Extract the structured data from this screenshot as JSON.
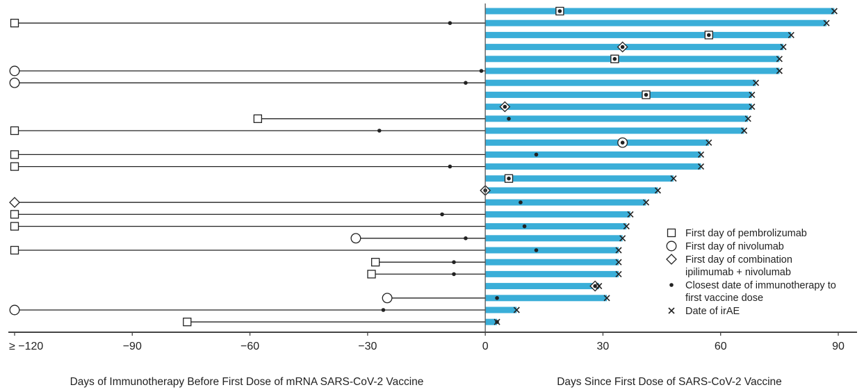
{
  "chart_data": {
    "type": "timeline",
    "x_axis": {
      "range": [
        -120,
        90
      ],
      "ticks": [
        {
          "value": -120,
          "label": "≥ −120"
        },
        {
          "value": -90,
          "label": "−90"
        },
        {
          "value": -60,
          "label": "−60"
        },
        {
          "value": -30,
          "label": "−30"
        },
        {
          "value": 0,
          "label": "0"
        },
        {
          "value": 30,
          "label": "30"
        },
        {
          "value": 60,
          "label": "60"
        },
        {
          "value": 90,
          "label": "90"
        }
      ],
      "left_title": "Days of Immunotherapy Before First Dose of mRNA SARS-CoV-2 Vaccine",
      "right_title": "Days Since First Dose of SARS-CoV-2 Vaccine"
    },
    "colors": {
      "bar": "#3aaed8",
      "line": "#222222"
    },
    "legend": {
      "placement": "bottom-right",
      "entries": [
        {
          "marker": "square",
          "lines": [
            "First day of pembrolizumab"
          ]
        },
        {
          "marker": "circle",
          "lines": [
            "First day of nivolumab"
          ]
        },
        {
          "marker": "diamond",
          "lines": [
            "First day of combination",
            "ipilimumab + nivolumab"
          ]
        },
        {
          "marker": "dot",
          "lines": [
            "Closest date of immunotherapy to",
            "first vaccine dose"
          ]
        },
        {
          "marker": "cross",
          "lines": [
            "Date of irAE"
          ]
        }
      ]
    },
    "patients": [
      {
        "start": 19,
        "start_type": "square",
        "closest": 19,
        "irae": 89
      },
      {
        "start": -120,
        "start_type": "square",
        "closest": -9,
        "irae": 87
      },
      {
        "start": 57,
        "start_type": "square",
        "closest": 57,
        "irae": 78
      },
      {
        "start": 35,
        "start_type": "diamond",
        "closest": 35,
        "irae": 76
      },
      {
        "start": 33,
        "start_type": "square",
        "closest": 33,
        "irae": 75
      },
      {
        "start": -120,
        "start_type": "circle",
        "closest": -1,
        "irae": 75
      },
      {
        "start": -120,
        "start_type": "circle",
        "closest": -5,
        "irae": 69
      },
      {
        "start": 41,
        "start_type": "square",
        "closest": 41,
        "irae": 68
      },
      {
        "start": 5,
        "start_type": "diamond",
        "closest": 5,
        "irae": 68
      },
      {
        "start": -58,
        "start_type": "square",
        "closest": 6,
        "irae": 67
      },
      {
        "start": -120,
        "start_type": "square",
        "closest": -27,
        "irae": 66
      },
      {
        "start": 35,
        "start_type": "circle",
        "closest": 35,
        "irae": 57
      },
      {
        "start": -120,
        "start_type": "square",
        "closest": 13,
        "irae": 55
      },
      {
        "start": -120,
        "start_type": "square",
        "closest": -9,
        "irae": 55
      },
      {
        "start": 6,
        "start_type": "square",
        "closest": 6,
        "irae": 48
      },
      {
        "start": 0,
        "start_type": "diamond",
        "closest": 0,
        "irae": 44
      },
      {
        "start": -120,
        "start_type": "diamond",
        "closest": 9,
        "irae": 41
      },
      {
        "start": -120,
        "start_type": "square",
        "closest": -11,
        "irae": 37
      },
      {
        "start": -120,
        "start_type": "square",
        "closest": 10,
        "irae": 36
      },
      {
        "start": -33,
        "start_type": "circle",
        "closest": -5,
        "irae": 35
      },
      {
        "start": -120,
        "start_type": "square",
        "closest": 13,
        "irae": 34
      },
      {
        "start": -28,
        "start_type": "square",
        "closest": -8,
        "irae": 34
      },
      {
        "start": -29,
        "start_type": "square",
        "closest": -8,
        "irae": 34
      },
      {
        "start": 28,
        "start_type": "diamond",
        "closest": 28,
        "irae": 29
      },
      {
        "start": -25,
        "start_type": "circle",
        "closest": 3,
        "irae": 31
      },
      {
        "start": -120,
        "start_type": "circle",
        "closest": -26,
        "irae": 8
      },
      {
        "start": -76,
        "start_type": "square",
        "closest": 3,
        "irae": 3
      }
    ]
  }
}
